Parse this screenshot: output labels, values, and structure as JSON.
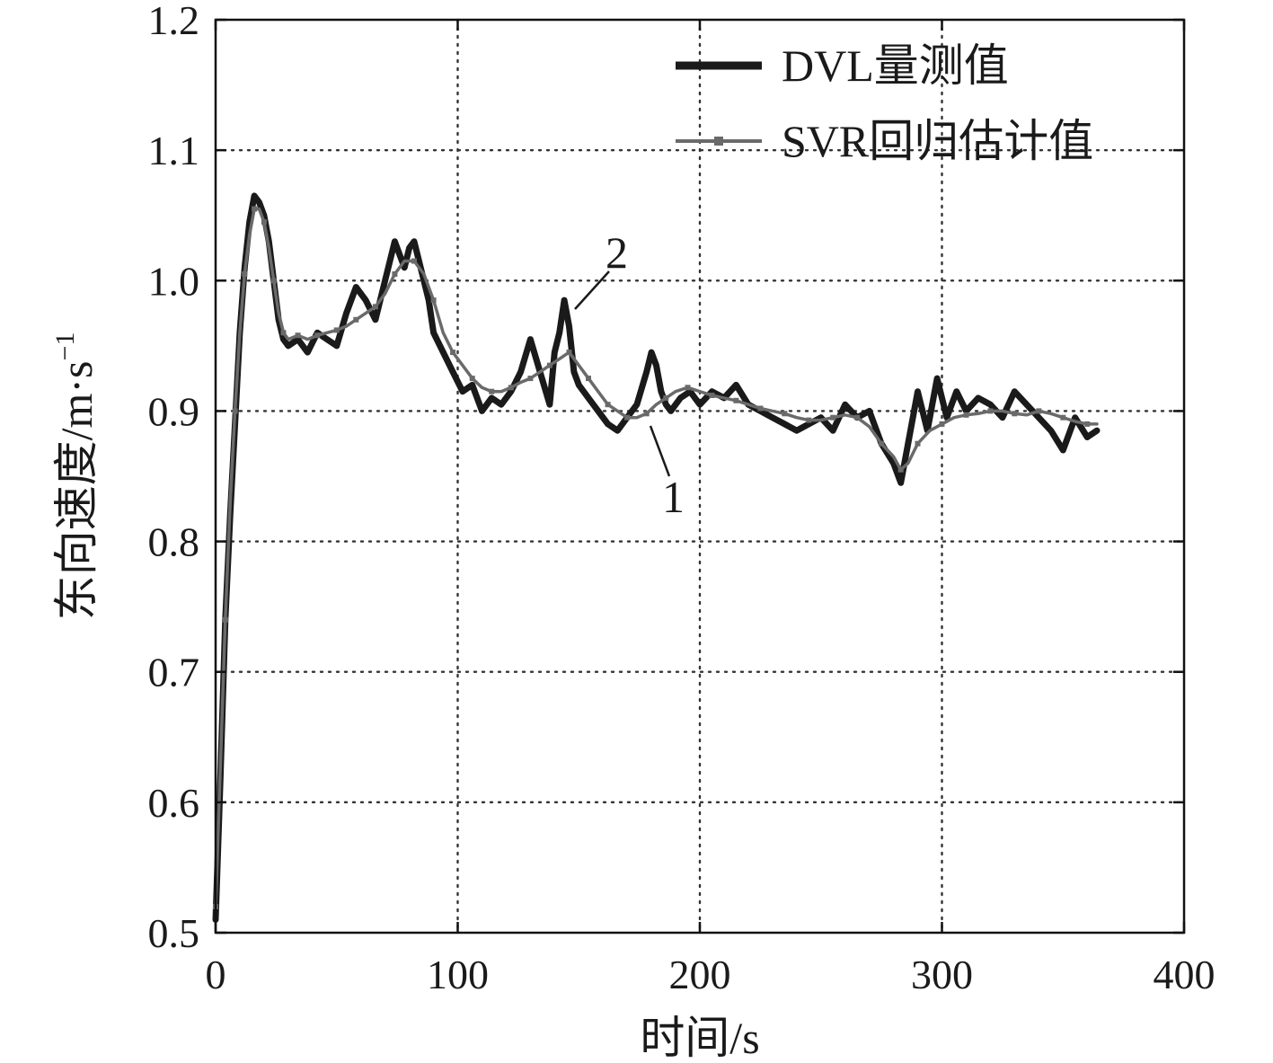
{
  "chart_data": {
    "type": "line",
    "xlabel": "时间/s",
    "ylabel": "东向速度/m·s",
    "ylabel_sup": "−1",
    "xlim": [
      0,
      400
    ],
    "ylim": [
      0.5,
      1.2
    ],
    "xticks": [
      0,
      100,
      200,
      300,
      400
    ],
    "xtick_labels": [
      "0",
      "100",
      "200",
      "300",
      "400"
    ],
    "yticks": [
      0.5,
      0.6,
      0.7,
      0.8,
      0.9,
      1.0,
      1.1,
      1.2
    ],
    "ytick_labels": [
      "0.5",
      "0.6",
      "0.7",
      "0.8",
      "0.9",
      "1.0",
      "1.1",
      "1.2"
    ],
    "grid": true,
    "legend_position": "top-right",
    "series": [
      {
        "name": "DVL量测值",
        "color": "#1a1a1a",
        "style": "thick-solid",
        "x": [
          0,
          2,
          4,
          6,
          8,
          10,
          12,
          14,
          16,
          18,
          20,
          22,
          24,
          26,
          28,
          30,
          34,
          38,
          42,
          46,
          50,
          54,
          58,
          62,
          66,
          70,
          74,
          76,
          78,
          80,
          82,
          84,
          86,
          88,
          90,
          94,
          98,
          102,
          106,
          110,
          114,
          118,
          122,
          126,
          130,
          134,
          138,
          140,
          142,
          144,
          146,
          148,
          150,
          154,
          158,
          162,
          166,
          170,
          174,
          178,
          180,
          182,
          184,
          186,
          188,
          192,
          196,
          200,
          205,
          210,
          215,
          220,
          225,
          230,
          235,
          240,
          245,
          250,
          255,
          260,
          265,
          270,
          275,
          280,
          283,
          286,
          290,
          294,
          298,
          302,
          306,
          310,
          315,
          320,
          325,
          330,
          335,
          340,
          345,
          350,
          355,
          360,
          364
        ],
        "values": [
          0.51,
          0.62,
          0.74,
          0.82,
          0.89,
          0.96,
          1.01,
          1.045,
          1.065,
          1.06,
          1.05,
          1.03,
          1.0,
          0.97,
          0.955,
          0.95,
          0.955,
          0.945,
          0.96,
          0.955,
          0.95,
          0.975,
          0.995,
          0.985,
          0.97,
          1.0,
          1.03,
          1.02,
          1.01,
          1.025,
          1.03,
          1.015,
          1.0,
          0.985,
          0.96,
          0.945,
          0.93,
          0.915,
          0.92,
          0.9,
          0.91,
          0.905,
          0.915,
          0.93,
          0.955,
          0.93,
          0.905,
          0.945,
          0.96,
          0.985,
          0.965,
          0.93,
          0.92,
          0.91,
          0.9,
          0.89,
          0.885,
          0.895,
          0.905,
          0.93,
          0.945,
          0.935,
          0.915,
          0.905,
          0.9,
          0.91,
          0.915,
          0.905,
          0.915,
          0.91,
          0.92,
          0.905,
          0.9,
          0.895,
          0.89,
          0.885,
          0.89,
          0.895,
          0.885,
          0.905,
          0.895,
          0.9,
          0.875,
          0.86,
          0.845,
          0.875,
          0.915,
          0.885,
          0.925,
          0.895,
          0.915,
          0.9,
          0.91,
          0.905,
          0.895,
          0.915,
          0.905,
          0.895,
          0.885,
          0.87,
          0.895,
          0.88,
          0.885
        ]
      },
      {
        "name": "SVR回归估计值",
        "color": "#6a6a6a",
        "style": "thin-solid-with-square-markers",
        "x": [
          0,
          2,
          4,
          6,
          8,
          10,
          12,
          14,
          16,
          18,
          20,
          22,
          24,
          26,
          28,
          30,
          34,
          38,
          42,
          46,
          50,
          54,
          58,
          62,
          66,
          70,
          74,
          78,
          82,
          86,
          90,
          94,
          98,
          102,
          106,
          110,
          114,
          118,
          122,
          126,
          130,
          134,
          138,
          142,
          146,
          150,
          154,
          158,
          162,
          166,
          170,
          174,
          178,
          182,
          186,
          190,
          195,
          200,
          205,
          210,
          215,
          220,
          225,
          230,
          235,
          240,
          245,
          250,
          255,
          260,
          265,
          270,
          275,
          280,
          283,
          286,
          290,
          295,
          300,
          305,
          310,
          315,
          320,
          325,
          330,
          335,
          340,
          345,
          350,
          355,
          360,
          364
        ],
        "values": [
          0.52,
          0.63,
          0.74,
          0.83,
          0.9,
          0.96,
          1.005,
          1.035,
          1.055,
          1.055,
          1.045,
          1.025,
          1.0,
          0.975,
          0.96,
          0.955,
          0.958,
          0.955,
          0.958,
          0.96,
          0.962,
          0.965,
          0.97,
          0.975,
          0.98,
          0.99,
          1.005,
          1.015,
          1.015,
          1.005,
          0.985,
          0.96,
          0.945,
          0.935,
          0.925,
          0.918,
          0.915,
          0.915,
          0.918,
          0.922,
          0.925,
          0.93,
          0.935,
          0.94,
          0.945,
          0.935,
          0.925,
          0.915,
          0.905,
          0.9,
          0.895,
          0.895,
          0.898,
          0.905,
          0.91,
          0.915,
          0.918,
          0.915,
          0.912,
          0.91,
          0.908,
          0.905,
          0.902,
          0.9,
          0.898,
          0.895,
          0.893,
          0.893,
          0.895,
          0.897,
          0.895,
          0.888,
          0.875,
          0.865,
          0.855,
          0.86,
          0.875,
          0.885,
          0.89,
          0.895,
          0.897,
          0.898,
          0.9,
          0.9,
          0.898,
          0.897,
          0.9,
          0.898,
          0.895,
          0.892,
          0.89,
          0.89
        ]
      }
    ],
    "annotations": [
      {
        "text": "2",
        "target_x": 148,
        "target_y": 0.98
      },
      {
        "text": "1",
        "target_x": 182,
        "target_y": 0.895
      }
    ]
  }
}
